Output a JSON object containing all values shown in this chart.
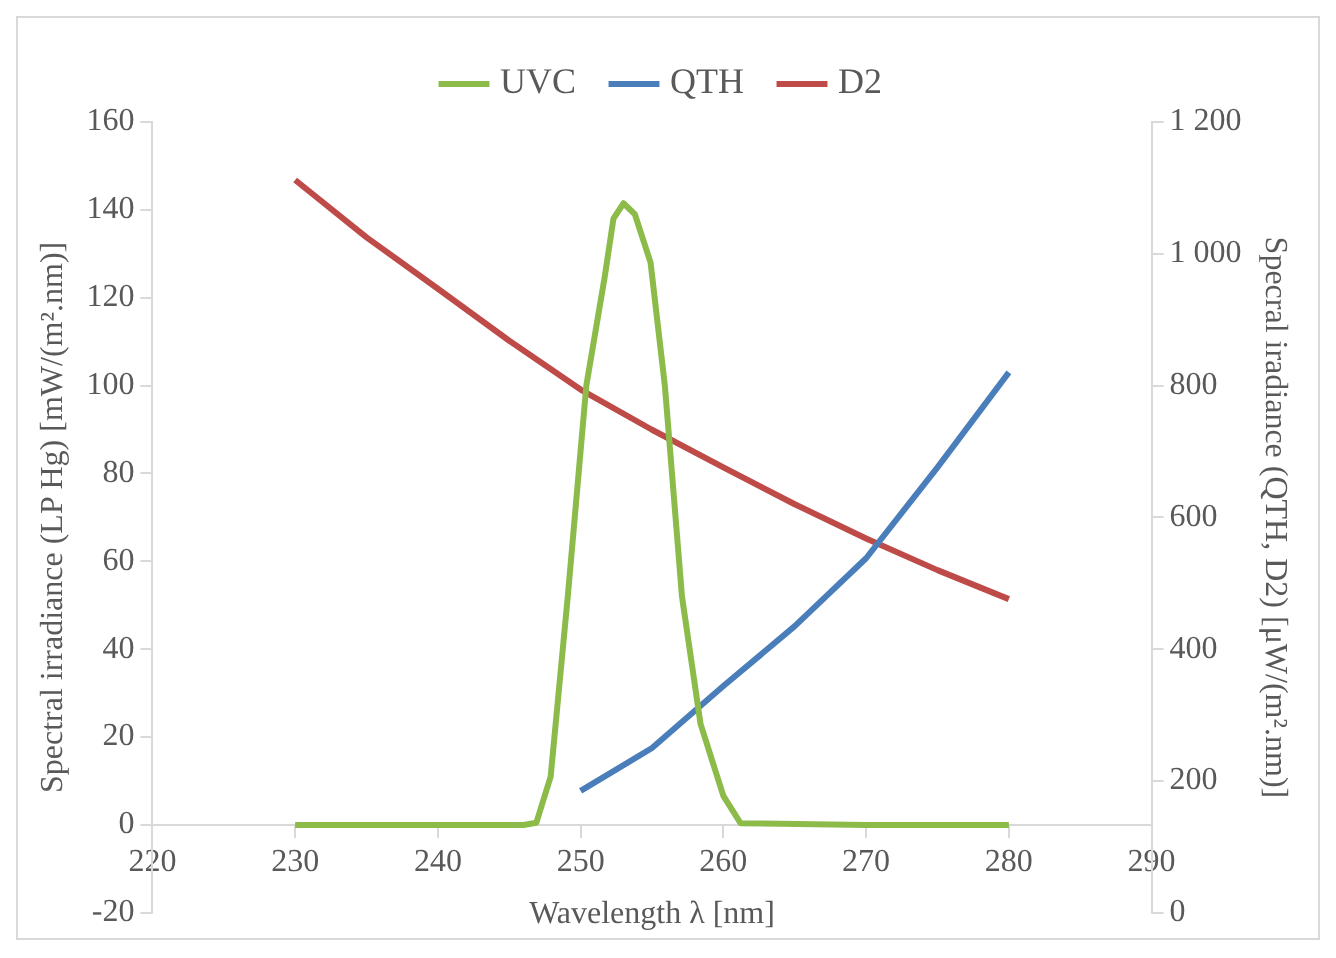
{
  "chart_data": {
    "type": "line",
    "xlabel": "Wavelength λ [nm]",
    "ylabel": "Spectral irradiance (LP Hg) [mW/(m².nm)]",
    "y2label": "Specral iradiance (QTH, D2) [μW/(m².nm)]",
    "xlim": [
      220,
      290
    ],
    "xticks": [
      220,
      230,
      240,
      250,
      260,
      270,
      280,
      290
    ],
    "ylim": [
      -20,
      160
    ],
    "yticks": [
      -20,
      0,
      20,
      40,
      60,
      80,
      100,
      120,
      140,
      160
    ],
    "y2lim": [
      0,
      1200
    ],
    "y2ticks": [
      0,
      200,
      400,
      600,
      800,
      {
        "value": 1000,
        "label": "1 000"
      },
      {
        "value": 1200,
        "label": "1 200"
      }
    ],
    "grid": false,
    "legend": "top",
    "marker": "none",
    "line_style": "solid",
    "series": [
      {
        "name": "UVC",
        "color": "#8cbb4a",
        "x": [
          230,
          240,
          246,
          246.9,
          247.9,
          249.1,
          250.4,
          251.7,
          252.3,
          253,
          253.8,
          254.9,
          255.9,
          257.1,
          258.4,
          260,
          261.2,
          270,
          280
        ],
        "values": [
          0,
          0,
          0,
          0.5,
          11,
          52,
          100,
          125,
          138,
          141.5,
          139,
          128,
          100,
          52,
          23,
          6.6,
          0.4,
          0,
          0
        ]
      },
      {
        "name": "QTH",
        "color": "#4a7ebb",
        "axis": "y2",
        "x": [
          250,
          255,
          260,
          265,
          270,
          275,
          280
        ],
        "values": [
          185,
          250,
          344,
          435,
          538,
          676,
          820
        ]
      },
      {
        "name": "D2",
        "color": "#be4b48",
        "axis": "y2",
        "x": [
          230,
          235,
          240,
          245,
          250,
          255,
          260,
          265,
          270,
          275,
          280
        ],
        "values": [
          1112,
          1025,
          947,
          868,
          794,
          733,
          676,
          620,
          568,
          520,
          476
        ]
      }
    ]
  }
}
